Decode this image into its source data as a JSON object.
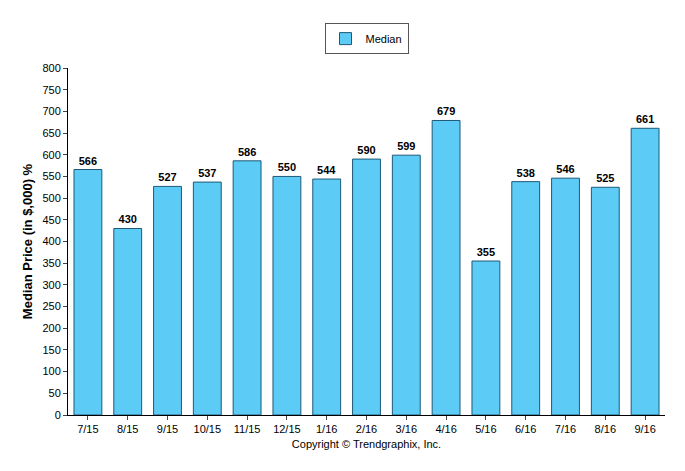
{
  "chart_data": {
    "type": "bar",
    "y_label": "Median Price (in $,000) %",
    "x_label": "Copyright © Trendgraphix, Inc.",
    "categories": [
      "7/15",
      "8/15",
      "9/15",
      "10/15",
      "11/15",
      "12/15",
      "1/16",
      "2/16",
      "3/16",
      "4/16",
      "5/16",
      "6/16",
      "7/16",
      "8/16",
      "9/16"
    ],
    "series": [
      {
        "name": "Median",
        "color": "#5ccbf5",
        "values": [
          566,
          430,
          527,
          537,
          586,
          550,
          544,
          590,
          599,
          679,
          355,
          538,
          546,
          525,
          661
        ]
      }
    ],
    "ylim": [
      0,
      800
    ],
    "yticks": [
      0,
      50,
      100,
      150,
      200,
      250,
      300,
      350,
      400,
      450,
      500,
      550,
      600,
      650,
      700,
      750,
      800
    ],
    "grid": false,
    "legend": "top",
    "data_labels": true
  }
}
